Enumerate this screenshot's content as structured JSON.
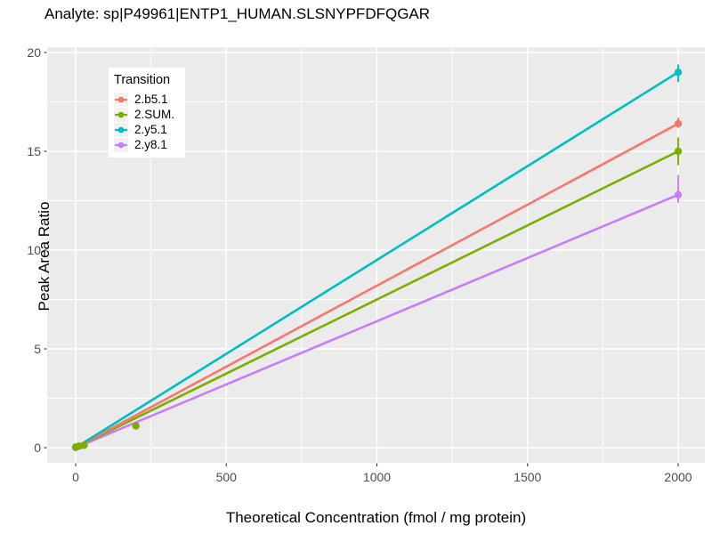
{
  "figure": {
    "title": "Analyte: sp|P49961|ENTP1_HUMAN.SLSNYPFDFQGAR",
    "x_axis_title": "Theoretical Concentration (fmol / mg protein)",
    "y_axis_title": "Peak Area Ratio"
  },
  "theme": {
    "panel_bg": "#EBEBEB",
    "grid_color": "#FFFFFF",
    "tick_mark_color": "#333333",
    "tick_label_color": "#4D4D4D",
    "legend_key_bg": "#F2F2F2",
    "background": "#FFFFFF"
  },
  "chart_data": {
    "type": "line",
    "title": "Analyte: sp|P49961|ENTP1_HUMAN.SLSNYPFDFQGAR",
    "xlabel": "Theoretical Concentration (fmol / mg protein)",
    "ylabel": "Peak Area Ratio",
    "xlim": [
      -100,
      2100
    ],
    "ylim": [
      -0.8,
      20.3
    ],
    "x_ticks": [
      0,
      500,
      1000,
      1500,
      2000
    ],
    "y_ticks": [
      0,
      5,
      10,
      15,
      20
    ],
    "x_minor_ticks": [
      250,
      750,
      1250,
      1750
    ],
    "y_minor_ticks": [
      2.5,
      7.5,
      12.5,
      17.5
    ],
    "grid": "white major and minor gridlines on gray panel",
    "legend_title": "Transition",
    "legend_position": "inside top-left",
    "series": [
      {
        "name": "2.b5.1",
        "color": "#F8766D",
        "line": [
          [
            0,
            0
          ],
          [
            2000,
            16.4
          ]
        ],
        "points": [
          [
            0,
            0.02
          ],
          [
            2000,
            16.4
          ]
        ],
        "error_bars": [
          {
            "x": 2000,
            "low": 16.2,
            "high": 16.7
          }
        ]
      },
      {
        "name": "2.SUM.",
        "color": "#7CAE00",
        "line": [
          [
            0,
            0
          ],
          [
            2000,
            15.0
          ]
        ],
        "points": [
          [
            0,
            0.03
          ],
          [
            12,
            0.08
          ],
          [
            28,
            0.12
          ],
          [
            200,
            1.1
          ],
          [
            2000,
            15.0
          ]
        ],
        "error_bars": [
          {
            "x": 2000,
            "low": 14.3,
            "high": 15.7
          }
        ]
      },
      {
        "name": "2.y5.1",
        "color": "#00BFC4",
        "line": [
          [
            0,
            0
          ],
          [
            2000,
            19.0
          ]
        ],
        "points": [
          [
            0,
            0.02
          ],
          [
            2000,
            19.0
          ]
        ],
        "error_bars": [
          {
            "x": 2000,
            "low": 18.5,
            "high": 19.4
          }
        ]
      },
      {
        "name": "2.y8.1",
        "color": "#C77CFF",
        "line": [
          [
            0,
            0
          ],
          [
            2000,
            12.8
          ]
        ],
        "points": [
          [
            0,
            0.01
          ],
          [
            2000,
            12.8
          ]
        ],
        "error_bars": [
          {
            "x": 2000,
            "low": 12.4,
            "high": 13.8
          }
        ]
      }
    ]
  }
}
